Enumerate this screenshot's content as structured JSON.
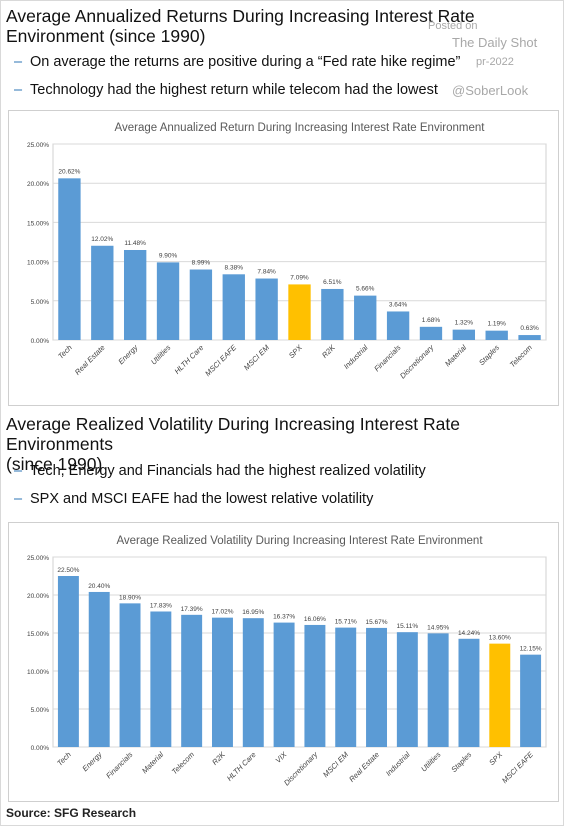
{
  "header1": {
    "title": "Average Annualized Returns During Increasing Interest Rate\nEnvironment (since 1990)",
    "bullets": [
      "On average the returns are positive during a “Fed rate hike regime”",
      "Technology had the highest return while telecom had the lowest"
    ]
  },
  "watermark": {
    "posted_on": "Posted on",
    "brand": "The Daily Shot",
    "date": "pr-2022",
    "handle": "@SoberLook"
  },
  "header2": {
    "title": "Average Realized Volatility During Increasing Interest Rate Environments\n(since 1990)",
    "bullets": [
      "Tech, Energy and Financials had the highest realized volatility",
      "SPX and MSCI EAFE had the lowest relative volatility"
    ]
  },
  "source": "Source: SFG Research",
  "colors": {
    "bar": "#5b9bd5",
    "highlight": "#ffc000",
    "dash": "#2e75b6"
  },
  "chart_data": [
    {
      "type": "bar",
      "title": "Average Annualized Return During Increasing Interest Rate Environment",
      "categories": [
        "Tech",
        "Real Estate",
        "Energy",
        "Utilities",
        "HLTH Care",
        "MSCI EAFE",
        "MSCI EM",
        "SPX",
        "R2K",
        "Industrial",
        "Financials",
        "Discretionary",
        "Material",
        "Staples",
        "Telecom"
      ],
      "values": [
        20.62,
        12.02,
        11.48,
        9.9,
        8.99,
        8.38,
        7.84,
        7.09,
        6.51,
        5.66,
        3.64,
        1.68,
        1.32,
        1.19,
        0.63
      ],
      "data_labels": [
        "20.62%",
        "12.02%",
        "11.48%",
        "9.90%",
        "8.99%",
        "8.38%",
        "7.84%",
        "7.09%",
        "6.51%",
        "5.66%",
        "3.64%",
        "1.68%",
        "1.32%",
        "1.19%",
        "0.63%"
      ],
      "yticks": [
        "0.00%",
        "5.00%",
        "10.00%",
        "15.00%",
        "20.00%",
        "25.00%"
      ],
      "ylim": [
        0,
        25
      ],
      "highlight": "SPX",
      "grid": true
    },
    {
      "type": "bar",
      "title": "Average Realized Volatility During Increasing Interest Rate Environment",
      "categories": [
        "Tech",
        "Energy",
        "Financials",
        "Material",
        "Telecom",
        "R2K",
        "HLTH Care",
        "VIX",
        "Discretionary",
        "MSCI EM",
        "Real Estate",
        "Industrial",
        "Utilities",
        "Staples",
        "SPX",
        "MSCI EAFE"
      ],
      "values": [
        22.5,
        20.4,
        18.9,
        17.83,
        17.39,
        17.02,
        16.95,
        16.37,
        16.06,
        15.71,
        15.67,
        15.11,
        14.95,
        14.24,
        13.6,
        12.15
      ],
      "data_labels": [
        "22.50%",
        "20.40%",
        "18.90%",
        "17.83%",
        "17.39%",
        "17.02%",
        "16.95%",
        "16.37%",
        "16.06%",
        "15.71%",
        "15.67%",
        "15.11%",
        "14.95%",
        "14.24%",
        "13.60%",
        "12.15%"
      ],
      "yticks": [
        "0.00%",
        "5.00%",
        "10.00%",
        "15.00%",
        "20.00%",
        "25.00%"
      ],
      "ylim": [
        0,
        25
      ],
      "highlight": "SPX",
      "grid": true
    }
  ]
}
